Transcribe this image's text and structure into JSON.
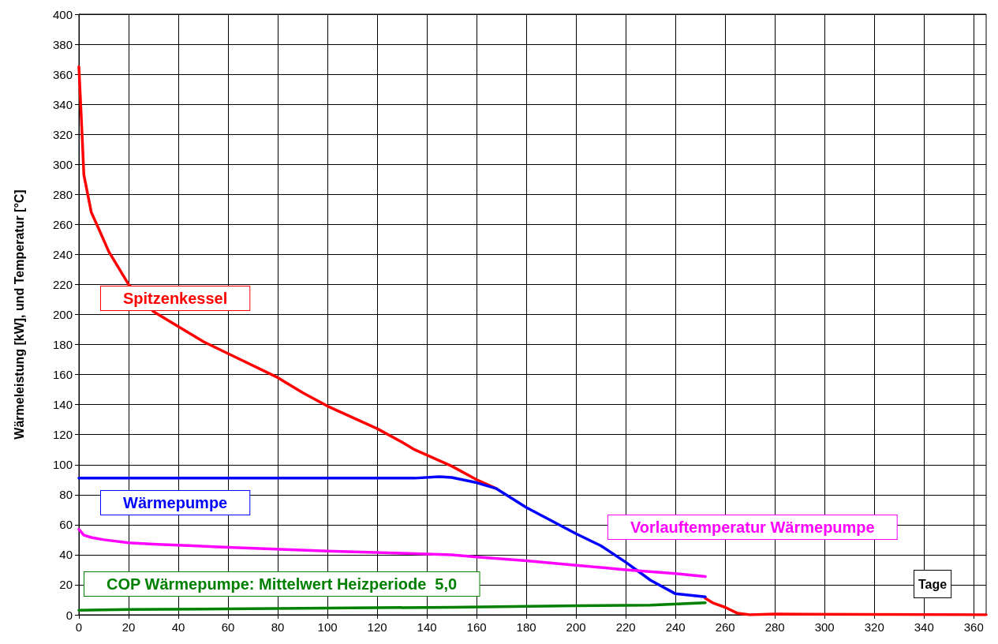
{
  "chart_data": {
    "type": "line",
    "xlabel": "Tage",
    "ylabel": "Wärmeleistung [kW], und Temperatur [°C]",
    "xlim": [
      0,
      365
    ],
    "xticks": [
      0,
      20,
      40,
      60,
      80,
      100,
      120,
      140,
      160,
      180,
      200,
      220,
      240,
      260,
      280,
      300,
      320,
      340,
      360
    ],
    "ylim": [
      0,
      400
    ],
    "yticks": [
      0,
      20,
      40,
      60,
      80,
      100,
      120,
      140,
      160,
      180,
      200,
      220,
      240,
      260,
      280,
      300,
      320,
      340,
      360,
      380,
      400
    ],
    "grid": true,
    "legend": false,
    "marker": "none",
    "line_style": "solid",
    "series": [
      {
        "name": "Spitzenkessel",
        "color": "#ff0000",
        "x": [
          0,
          1,
          2,
          5,
          8,
          12,
          20,
          30,
          40,
          50,
          60,
          80,
          90,
          100,
          120,
          130,
          135,
          150,
          160,
          168,
          180,
          200,
          210,
          220,
          230,
          240,
          252,
          255,
          260,
          265,
          270,
          280,
          365
        ],
        "values": [
          365,
          330,
          293,
          268,
          257,
          242,
          220,
          202,
          192,
          182,
          174,
          158,
          148,
          139,
          124,
          115,
          110,
          99,
          90,
          84,
          null,
          null,
          null,
          null,
          null,
          null,
          11,
          8,
          5,
          1,
          0,
          0.5,
          0
        ]
      },
      {
        "name": "Wärmepumpe",
        "color": "#0000ff",
        "x": [
          0,
          135,
          145,
          150,
          160,
          168,
          180,
          200,
          210,
          220,
          230,
          240,
          252
        ],
        "values": [
          91,
          91,
          92,
          91.5,
          88,
          84,
          71.5,
          54,
          46,
          35,
          23,
          14,
          12
        ]
      },
      {
        "name": "Vorlauftemperatur Wärmepumpe",
        "color": "#ff00ff",
        "x": [
          0,
          2,
          5,
          10,
          20,
          30,
          60,
          100,
          130,
          150,
          160,
          180,
          200,
          220,
          240,
          252
        ],
        "values": [
          57,
          53,
          51.5,
          50,
          48,
          47,
          45,
          42.5,
          41,
          40,
          38.5,
          36,
          33,
          30,
          27.5,
          25.5
        ]
      },
      {
        "name": "COP Wärmepumpe: Mittelwert Heizperiode  5,0",
        "color": "#008000",
        "x": [
          0,
          20,
          100,
          150,
          200,
          230,
          252
        ],
        "values": [
          3,
          3.5,
          4.5,
          5,
          6,
          6.5,
          8
        ]
      }
    ]
  }
}
